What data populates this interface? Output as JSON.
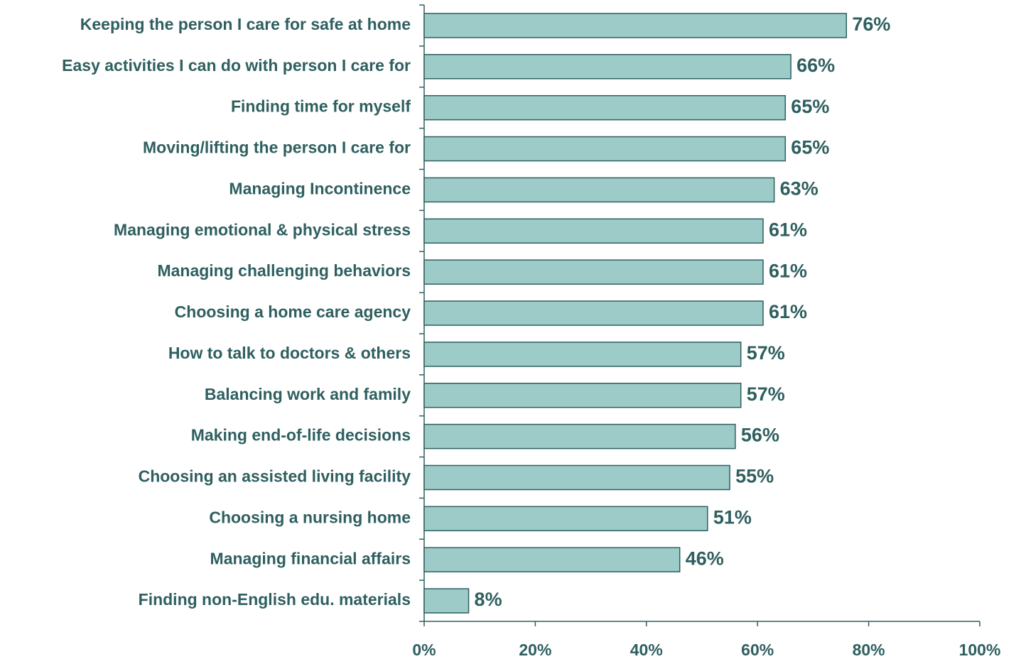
{
  "chart_data": {
    "type": "bar",
    "orientation": "horizontal",
    "categories": [
      "Keeping the person I care for safe at home",
      "Easy activities I can do with person I care for",
      "Finding time for myself",
      "Moving/lifting the person I care for",
      "Managing Incontinence",
      "Managing emotional & physical stress",
      "Managing challenging behaviors",
      "Choosing a home care agency",
      "How to talk to doctors & others",
      "Balancing work and family",
      "Making end-of-life decisions",
      "Choosing an assisted living facility",
      "Choosing a nursing home",
      "Managing financial affairs",
      "Finding non-English edu. materials"
    ],
    "values": [
      76,
      66,
      65,
      65,
      63,
      61,
      61,
      61,
      57,
      57,
      56,
      55,
      51,
      46,
      8
    ],
    "value_labels": [
      "76%",
      "66%",
      "65%",
      "65%",
      "63%",
      "61%",
      "61%",
      "61%",
      "57%",
      "57%",
      "56%",
      "55%",
      "51%",
      "46%",
      "8%"
    ],
    "color": "#9ccbc8",
    "xlim": [
      0,
      100
    ],
    "xticks": [
      {
        "value": 0,
        "label": "0%"
      },
      {
        "value": 20,
        "label": "20%"
      },
      {
        "value": 40,
        "label": "40%"
      },
      {
        "value": 60,
        "label": "60%"
      },
      {
        "value": 80,
        "label": "80%"
      },
      {
        "value": 100,
        "label": "100%"
      }
    ],
    "grid": false
  }
}
